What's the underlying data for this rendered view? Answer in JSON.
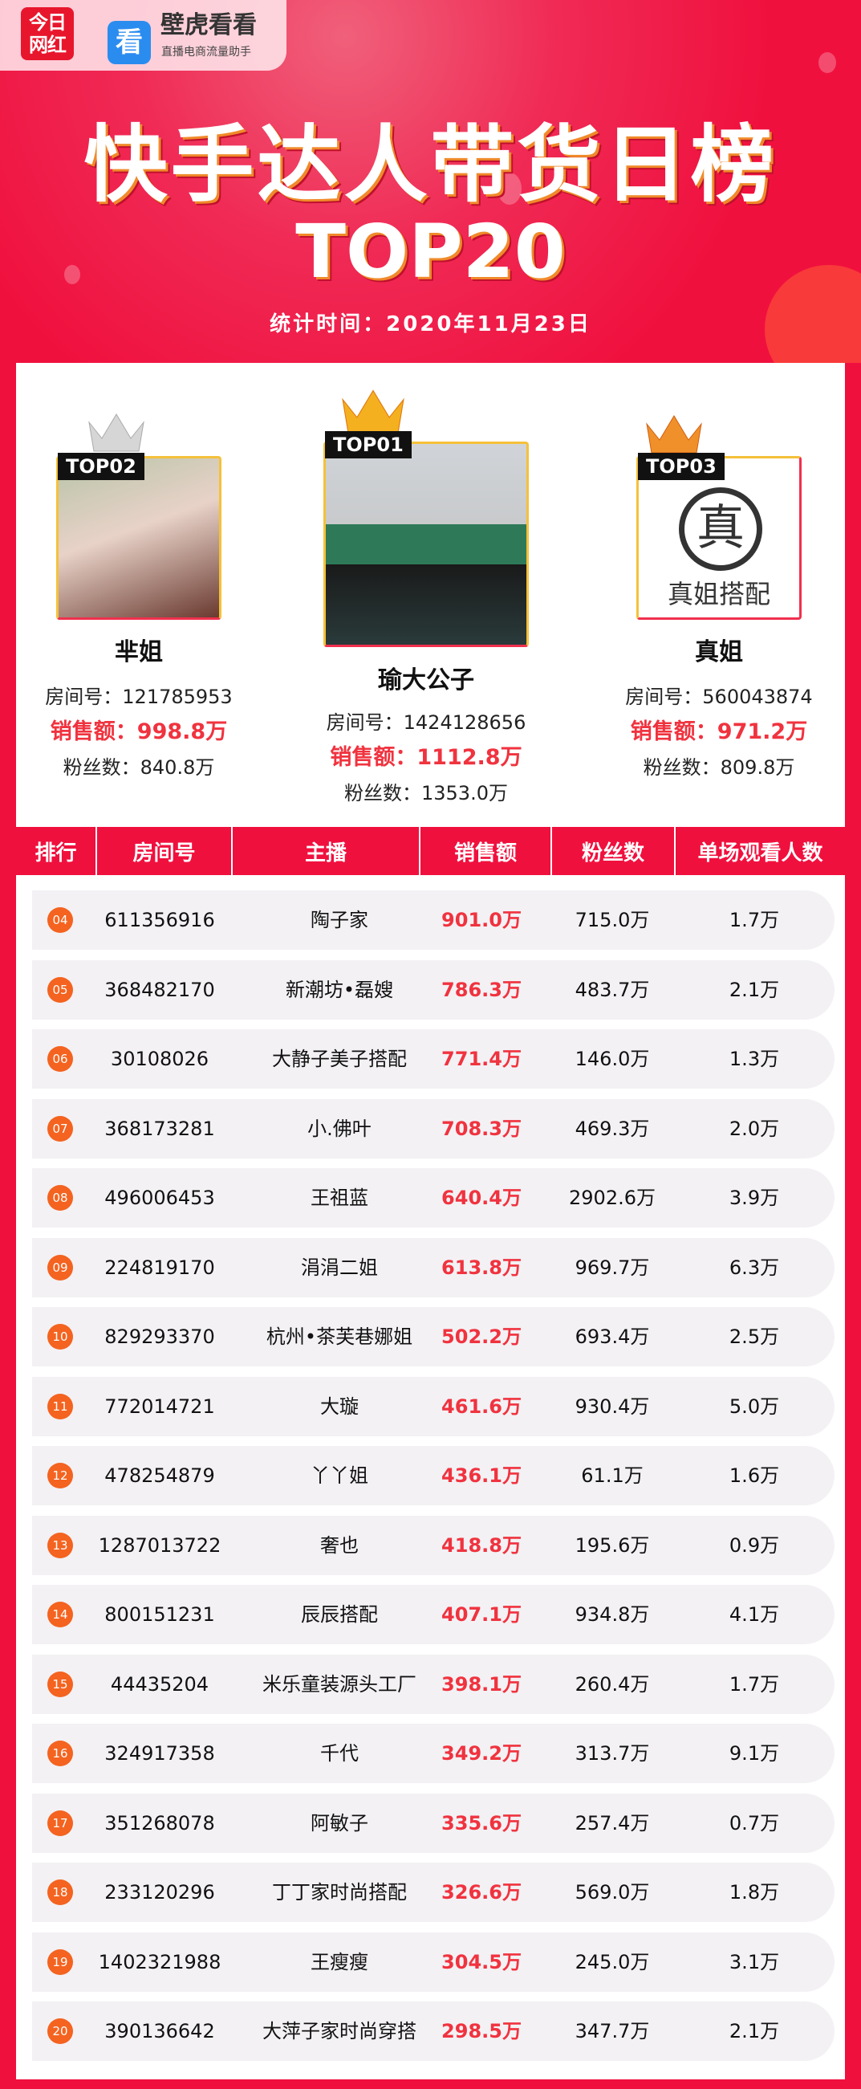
{
  "logos": {
    "left": "今日网红",
    "brand": "壁虎看看",
    "brand_sub": "直播电商流量助手",
    "app_glyph": "看"
  },
  "header": {
    "title": "快手达人带货日榜",
    "subtitle": "TOP20",
    "date": "统计时间：2020年11月23日"
  },
  "colors": {
    "accent": "#f0103e",
    "sales": "#f0333f",
    "rank_badge": "#f4631f",
    "gold": "#f5b020",
    "silver": "#d0d0d0",
    "bronze": "#f08a2a"
  },
  "top3": [
    {
      "badge": "TOP01",
      "name": "瑜大公子",
      "room": "房间号：1424128656",
      "sales": "销售额：1112.8万",
      "fans": "粉丝数：1353.0万"
    },
    {
      "badge": "TOP02",
      "name": "芈姐",
      "room": "房间号：121785953",
      "sales": "销售额：998.8万",
      "fans": "粉丝数：840.8万"
    },
    {
      "badge": "TOP03",
      "name": "真姐",
      "room": "房间号：560043874",
      "sales": "销售额：971.2万",
      "fans": "粉丝数：809.8万",
      "logo_char": "真",
      "logo_text": "真姐搭配"
    }
  ],
  "table": {
    "headers": [
      "排行",
      "房间号",
      "主播",
      "销售额",
      "粉丝数",
      "单场观看人数"
    ],
    "rows": [
      [
        "04",
        "611356916",
        "陶子家",
        "901.0万",
        "715.0万",
        "1.7万"
      ],
      [
        "05",
        "368482170",
        "新潮坊•磊嫂",
        "786.3万",
        "483.7万",
        "2.1万"
      ],
      [
        "06",
        "30108026",
        "大静子美子搭配",
        "771.4万",
        "146.0万",
        "1.3万"
      ],
      [
        "07",
        "368173281",
        "小.佛叶",
        "708.3万",
        "469.3万",
        "2.0万"
      ],
      [
        "08",
        "496006453",
        "王祖蓝",
        "640.4万",
        "2902.6万",
        "3.9万"
      ],
      [
        "09",
        "224819170",
        "涓涓二姐",
        "613.8万",
        "969.7万",
        "6.3万"
      ],
      [
        "10",
        "829293370",
        "杭州•茶芙巷娜姐",
        "502.2万",
        "693.4万",
        "2.5万"
      ],
      [
        "11",
        "772014721",
        "大璇",
        "461.6万",
        "930.4万",
        "5.0万"
      ],
      [
        "12",
        "478254879",
        "丫丫姐",
        "436.1万",
        "61.1万",
        "1.6万"
      ],
      [
        "13",
        "1287013722",
        "奢也",
        "418.8万",
        "195.6万",
        "0.9万"
      ],
      [
        "14",
        "800151231",
        "辰辰搭配",
        "407.1万",
        "934.8万",
        "4.1万"
      ],
      [
        "15",
        "44435204",
        "米乐童装源头工厂",
        "398.1万",
        "260.4万",
        "1.7万"
      ],
      [
        "16",
        "324917358",
        "千代",
        "349.2万",
        "313.7万",
        "9.1万"
      ],
      [
        "17",
        "351268078",
        "阿敏子",
        "335.6万",
        "257.4万",
        "0.7万"
      ],
      [
        "18",
        "233120296",
        "丁丁家时尚搭配",
        "326.6万",
        "569.0万",
        "1.8万"
      ],
      [
        "19",
        "1402321988",
        "王瘦瘦",
        "304.5万",
        "245.0万",
        "3.1万"
      ],
      [
        "20",
        "390136642",
        "大萍子家时尚穿搭",
        "298.5万",
        "347.7万",
        "2.1万"
      ]
    ]
  }
}
